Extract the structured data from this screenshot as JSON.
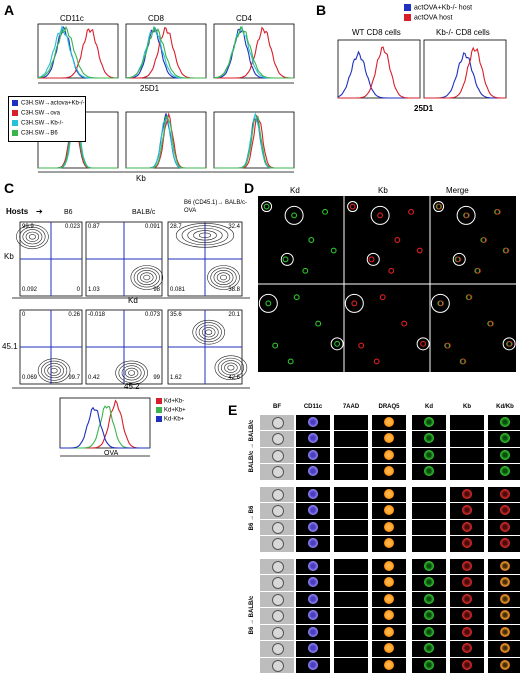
{
  "panels": {
    "A": {
      "label": "A",
      "col_titles": [
        "CD11c",
        "CD8",
        "CD4"
      ],
      "xlabel_top": "25D1",
      "xlabel_bottom": "Kb",
      "legend": [
        {
          "text": "C3H.SW→actova+Kb-/-",
          "color": "#1f2fbf"
        },
        {
          "text": "C3H.SW→ova",
          "color": "#d81e2a"
        },
        {
          "text": "C3H.SW→Kb-/-",
          "color": "#27c0d6"
        },
        {
          "text": "C3H.SW→B6",
          "color": "#3cb44b"
        }
      ]
    },
    "B": {
      "label": "B",
      "legend": [
        {
          "text": "actOVA+Kb-/- host",
          "color": "#1f2fbf"
        },
        {
          "text": "actOVA host",
          "color": "#d81e2a"
        }
      ],
      "titles": [
        "WT CD8 cells",
        "Kb-/- CD8 cells"
      ],
      "xlabel": "25D1"
    },
    "C": {
      "label": "C",
      "hosts_label": "Hosts",
      "col_titles": [
        "B6",
        "BALB/c",
        "B6 (CD45.1)→ BALB/c-OVA"
      ],
      "row1_ylabel": "Kb",
      "row1_xlabel": "Kd",
      "row2_ylabel": "45.1",
      "row2_xlabel": "45.2",
      "row1_quadrants": [
        [
          "99.9",
          "0.023",
          "0.092",
          "0"
        ],
        [
          "0.87",
          "0.091",
          "1.03",
          "98"
        ],
        [
          "28.7",
          "32.4",
          "0.081",
          "38.8"
        ]
      ],
      "row2_quadrants": [
        [
          "0",
          "0.26",
          "0.069",
          "99.7"
        ],
        [
          "-0.018",
          "0.073",
          "0.42",
          "99"
        ],
        [
          "35.6",
          "20.1",
          "1.62",
          "42.6"
        ]
      ],
      "hist_legend": [
        {
          "text": "Kd+Kb-",
          "color": "#d81e2a"
        },
        {
          "text": "Kd+Kb+",
          "color": "#3cb44b"
        },
        {
          "text": "Kd-Kb+",
          "color": "#1f2fbf"
        }
      ],
      "hist_xlabel": "OVA"
    },
    "D": {
      "label": "D",
      "col_titles": [
        "Kd",
        "Kb",
        "Merge"
      ]
    },
    "E": {
      "label": "E",
      "col_titles": [
        "BF",
        "CD11c",
        "7AAD",
        "DRAQ5",
        "Kd",
        "Kb",
        "Kd/Kb"
      ],
      "groups": [
        {
          "label": "BALB/c → BALB/c",
          "rows": 4
        },
        {
          "label": "B6 → B6",
          "rows": 4
        },
        {
          "label": "B6 → BALB/c",
          "rows": 7
        }
      ]
    }
  }
}
